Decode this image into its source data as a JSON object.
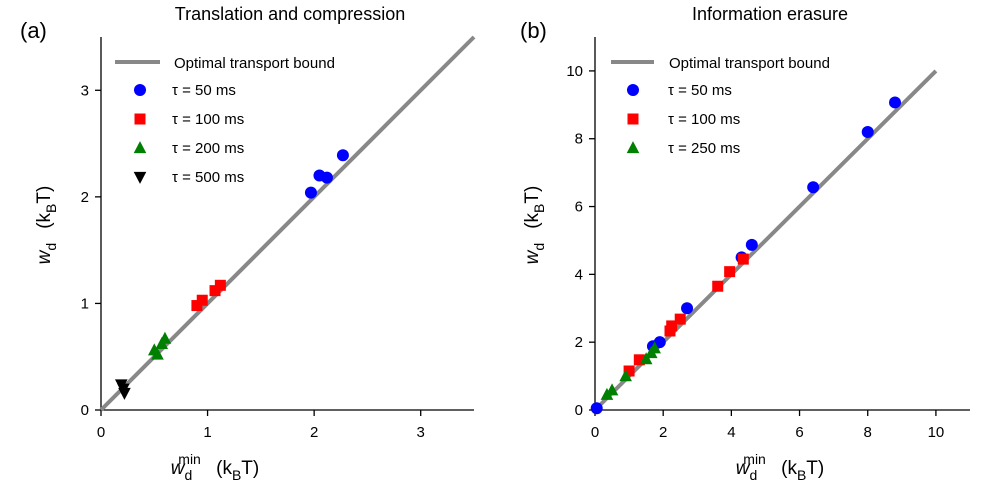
{
  "chart_data": [
    {
      "type": "scatter",
      "panel_label": "(a)",
      "title": "Translation and compression",
      "xlabel": {
        "main": "w",
        "sub": "d",
        "sup": "min",
        "unit_open": "(k",
        "unit_sub": "B",
        "unit_close": "T)"
      },
      "ylabel": {
        "main": "w",
        "sub": "d",
        "unit_open": "(k",
        "unit_sub": "B",
        "unit_close": "T)"
      },
      "xlim": [
        0,
        3.5
      ],
      "ylim": [
        0,
        3.5
      ],
      "xticks": [
        0,
        1,
        2,
        3
      ],
      "yticks": [
        0,
        1,
        2,
        3
      ],
      "line": {
        "name": "Optimal transport bound",
        "x": [
          0,
          3.5
        ],
        "y": [
          0,
          3.5
        ]
      },
      "series": [
        {
          "tau": "τ = 50 ms",
          "marker": "circle",
          "color": "#0000ff",
          "points": [
            [
              1.97,
              2.04
            ],
            [
              2.05,
              2.2
            ],
            [
              2.12,
              2.18
            ],
            [
              2.27,
              2.39
            ]
          ]
        },
        {
          "tau": "τ = 100 ms",
          "marker": "square",
          "color": "#ff0000",
          "points": [
            [
              0.9,
              0.98
            ],
            [
              0.95,
              1.03
            ],
            [
              1.07,
              1.12
            ],
            [
              1.12,
              1.17
            ]
          ]
        },
        {
          "tau": "τ = 200 ms",
          "marker": "triangle-up",
          "color": "#008000",
          "points": [
            [
              0.5,
              0.56
            ],
            [
              0.53,
              0.52
            ],
            [
              0.57,
              0.62
            ],
            [
              0.6,
              0.67
            ]
          ]
        },
        {
          "tau": "τ = 500 ms",
          "marker": "triangle-down",
          "color": "#000000",
          "points": [
            [
              0.19,
              0.24
            ],
            [
              0.21,
              0.2
            ],
            [
              0.22,
              0.16
            ]
          ]
        }
      ]
    },
    {
      "type": "scatter",
      "panel_label": "(b)",
      "title": "Information erasure",
      "xlabel": {
        "main": "w",
        "sub": "d",
        "sup": "min",
        "unit_open": "(k",
        "unit_sub": "B",
        "unit_close": "T)"
      },
      "ylabel": {
        "main": "w",
        "sub": "d",
        "unit_open": "(k",
        "unit_sub": "B",
        "unit_close": "T)"
      },
      "xlim": [
        0,
        11
      ],
      "ylim": [
        0,
        11
      ],
      "xticks": [
        0,
        2,
        4,
        6,
        8,
        10
      ],
      "yticks": [
        0,
        2,
        4,
        6,
        8,
        10
      ],
      "line": {
        "name": "Optimal transport bound",
        "x": [
          0,
          10
        ],
        "y": [
          0,
          10
        ]
      },
      "series": [
        {
          "tau": "τ = 50 ms",
          "marker": "circle",
          "color": "#0000ff",
          "points": [
            [
              0.05,
              0.05
            ],
            [
              1.7,
              1.88
            ],
            [
              1.9,
              2.0
            ],
            [
              2.7,
              3.0
            ],
            [
              4.3,
              4.5
            ],
            [
              4.6,
              4.87
            ],
            [
              6.4,
              6.57
            ],
            [
              8.0,
              8.2
            ],
            [
              8.8,
              9.07
            ]
          ]
        },
        {
          "tau": "τ = 100 ms",
          "marker": "square",
          "color": "#ff0000",
          "points": [
            [
              1.0,
              1.15
            ],
            [
              1.3,
              1.48
            ],
            [
              2.2,
              2.33
            ],
            [
              2.25,
              2.48
            ],
            [
              2.5,
              2.68
            ],
            [
              3.6,
              3.65
            ],
            [
              3.95,
              4.08
            ],
            [
              4.35,
              4.45
            ]
          ]
        },
        {
          "tau": "τ = 250 ms",
          "marker": "triangle-up",
          "color": "#008000",
          "points": [
            [
              0.35,
              0.45
            ],
            [
              0.5,
              0.58
            ],
            [
              0.9,
              1.0
            ],
            [
              1.5,
              1.5
            ],
            [
              1.65,
              1.68
            ],
            [
              1.75,
              1.82
            ]
          ]
        }
      ]
    }
  ]
}
